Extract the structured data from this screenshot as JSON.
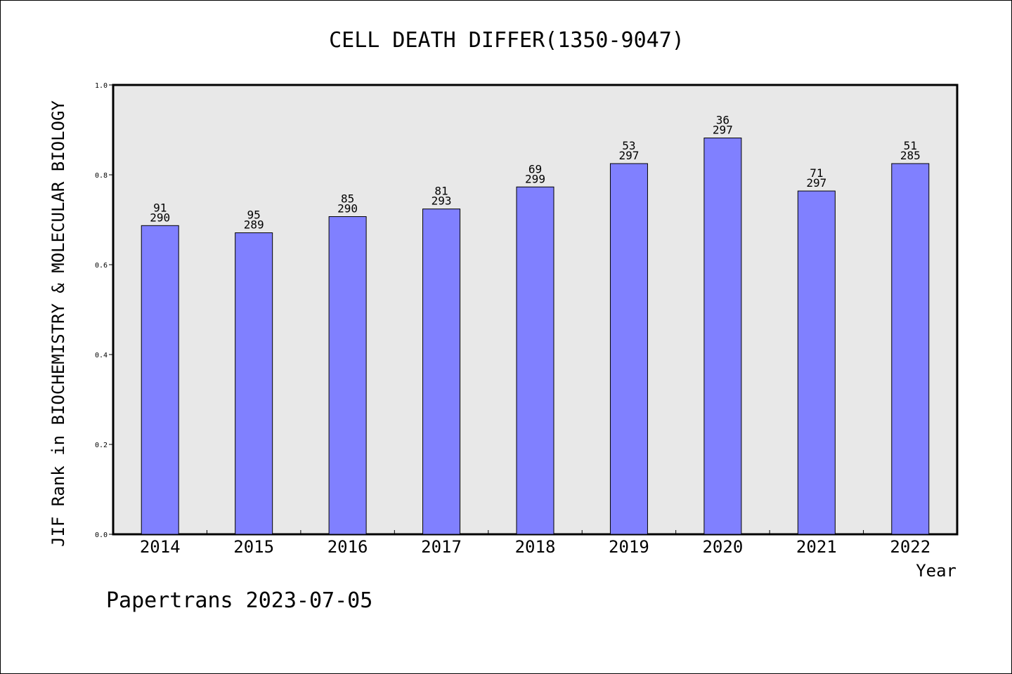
{
  "chart_data": {
    "type": "bar",
    "title": "CELL DEATH DIFFER(1350-9047)",
    "xlabel": "Year",
    "ylabel": "JIF Rank in BIOCHEMISTRY & MOLECULAR BIOLOGY",
    "footer": "Papertrans 2023-07-05",
    "categories": [
      "2014",
      "2015",
      "2016",
      "2017",
      "2018",
      "2019",
      "2020",
      "2021",
      "2022"
    ],
    "values": [
      0.687,
      0.671,
      0.707,
      0.724,
      0.773,
      0.825,
      0.882,
      0.764,
      0.825
    ],
    "rank": [
      "91",
      "95",
      "85",
      "81",
      "69",
      "53",
      "36",
      "71",
      "51"
    ],
    "total": [
      "290",
      "289",
      "290",
      "293",
      "299",
      "297",
      "297",
      "297",
      "285"
    ],
    "ylim": [
      0,
      1.0
    ],
    "yticks": [
      "0.0",
      "0.2",
      "0.4",
      "0.6",
      "0.8",
      "1.0"
    ],
    "grid": false,
    "colors": {
      "bar": "#8080ff",
      "plot_bg": "#e8e8e8",
      "border": "#000000"
    }
  }
}
